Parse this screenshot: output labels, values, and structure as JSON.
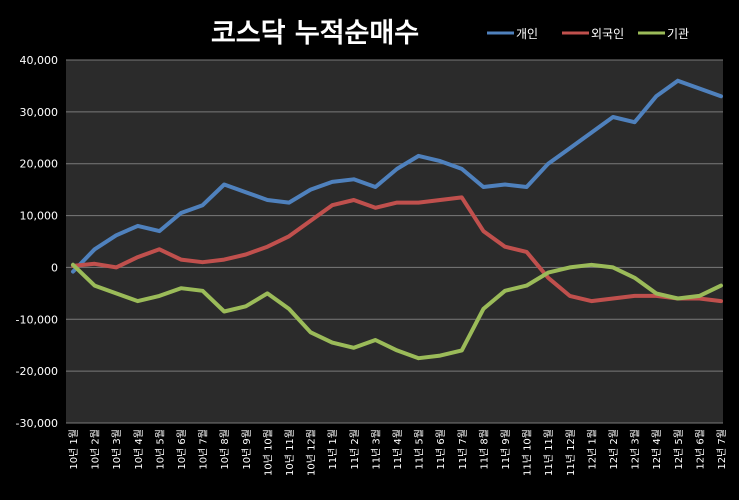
{
  "chart_data": {
    "type": "line",
    "title": "코스닥 누적순매수",
    "xlabel": "",
    "ylabel": "",
    "ylim": [
      -30000,
      40000
    ],
    "yticks": [
      40000,
      30000,
      20000,
      10000,
      0,
      -10000,
      -20000,
      -30000
    ],
    "ytick_labels": [
      "40,000",
      "30,000",
      "20,000",
      "10,000",
      "0",
      "-10,000",
      "-20,000",
      "-30,000"
    ],
    "categories": [
      "10년 1월",
      "10년 2월",
      "10년 3월",
      "10년 4월",
      "10년 5월",
      "10년 6월",
      "10년 7월",
      "10년 8월",
      "10년 9월",
      "10년 10월",
      "10년 11월",
      "10년 12월",
      "11년 1월",
      "11년 2월",
      "11년 3월",
      "11년 4월",
      "11년 5월",
      "11년 6월",
      "11년 7월",
      "11년 8월",
      "11년 9월",
      "11년 10월",
      "11년 11월",
      "11년 12월",
      "12년 1월",
      "12년 2월",
      "12년 3월",
      "12년 4월",
      "12년 5월",
      "12년 6월",
      "12년 7월"
    ],
    "grid": true,
    "legend": "top-right",
    "series": [
      {
        "name": "개인",
        "color": "#4F81BD",
        "values": [
          -800,
          3500,
          6200,
          8000,
          7000,
          10500,
          12000,
          16000,
          14500,
          13000,
          12500,
          15000,
          16500,
          17000,
          15500,
          19000,
          21500,
          20500,
          19000,
          15500,
          16000,
          15500,
          20000,
          23000,
          26000,
          29000,
          28000,
          33000,
          36000,
          34500,
          33000
        ]
      },
      {
        "name": "외국인",
        "color": "#C0504D",
        "values": [
          300,
          700,
          0,
          2000,
          3500,
          1500,
          1000,
          1500,
          2500,
          4000,
          6000,
          9000,
          12000,
          13000,
          11500,
          12500,
          12500,
          13000,
          13500,
          7000,
          4000,
          3000,
          -2000,
          -5500,
          -6500,
          -6000,
          -5500,
          -5500,
          -6000,
          -6000,
          -6500
        ]
      },
      {
        "name": "기관",
        "color": "#9BBB59",
        "values": [
          500,
          -3500,
          -5000,
          -6500,
          -5500,
          -4000,
          -4500,
          -8500,
          -7500,
          -5000,
          -8000,
          -12500,
          -14500,
          -15500,
          -14000,
          -16000,
          -17500,
          -17000,
          -16000,
          -8000,
          -4500,
          -3500,
          -1000,
          0,
          500,
          0,
          -2000,
          -5000,
          -6000,
          -5500,
          -3500
        ]
      }
    ]
  }
}
